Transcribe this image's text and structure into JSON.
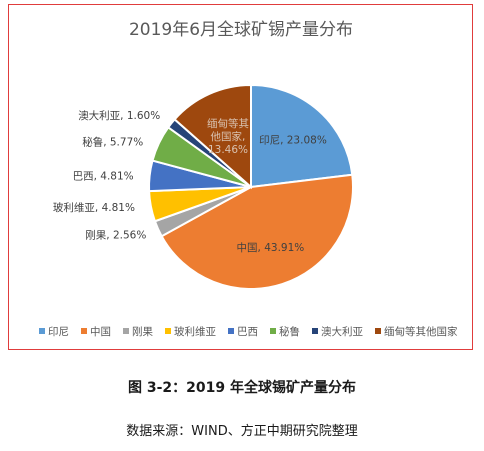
{
  "chart_data": {
    "type": "pie",
    "title": "2019年6月全球矿锡产量分布",
    "slices": [
      {
        "name": "印尼",
        "value": 23.08,
        "label": "印尼, 23.08%",
        "color": "#5b9bd5"
      },
      {
        "name": "中国",
        "value": 43.91,
        "label": "中国, 43.91%",
        "color": "#ed7d31"
      },
      {
        "name": "刚果",
        "value": 2.56,
        "label": "刚果, 2.56%",
        "color": "#a5a5a5"
      },
      {
        "name": "玻利维亚",
        "value": 4.81,
        "label": "玻利维亚, 4.81%",
        "color": "#ffc000"
      },
      {
        "name": "巴西",
        "value": 4.81,
        "label": "巴西, 4.81%",
        "color": "#4472c4"
      },
      {
        "name": "秘鲁",
        "value": 5.77,
        "label": "秘鲁, 5.77%",
        "color": "#70ad47"
      },
      {
        "name": "澳大利亚",
        "value": 1.6,
        "label": "澳大利亚, 1.60%",
        "color": "#264478"
      },
      {
        "name": "缅甸等其他国家",
        "label_lines": [
          "缅甸等其",
          "他国家,",
          "13.46%"
        ],
        "value": 13.46,
        "color": "#9e480e"
      }
    ],
    "legend_position": "bottom"
  },
  "figure": {
    "caption": "图 3-2：2019 年全球锡矿产量分布",
    "source": "数据来源：WIND、方正中期研究院整理"
  }
}
